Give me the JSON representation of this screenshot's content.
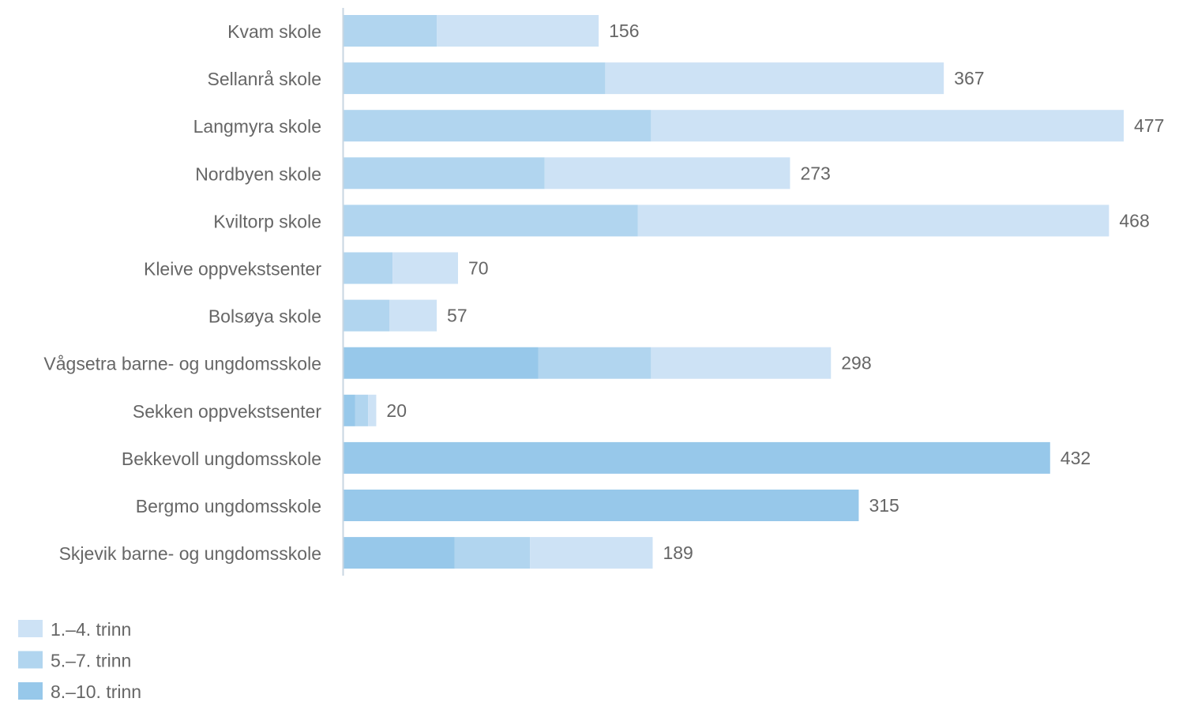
{
  "chart_data": {
    "type": "bar",
    "orientation": "horizontal",
    "stacked": true,
    "categories": [
      "Kvam skole",
      "Sellanrå skole",
      "Langmyra skole",
      "Nordbyen skole",
      "Kviltorp skole",
      "Kleive oppvekstsenter",
      "Bolsøya skole",
      "Vågsetra barne- og ungdomsskole",
      "Sekken oppvekstsenter",
      "Bekkevoll ungdomsskole",
      "Bergmo ungdomsskole",
      "Skjevik barne- og ungdomsskole"
    ],
    "series": [
      {
        "name": "8.–10. trinn",
        "color": "#97c8ea",
        "values": [
          0,
          0,
          0,
          0,
          0,
          0,
          0,
          119,
          7,
          432,
          315,
          68
        ]
      },
      {
        "name": "5.–7. trinn",
        "color": "#b1d5ef",
        "values": [
          57,
          160,
          188,
          123,
          180,
          30,
          28,
          69,
          8,
          0,
          0,
          46
        ]
      },
      {
        "name": "1.–4. trinn",
        "color": "#cde2f5",
        "values": [
          99,
          207,
          289,
          150,
          288,
          40,
          29,
          110,
          5,
          0,
          0,
          75
        ]
      }
    ],
    "totals": [
      156,
      367,
      477,
      273,
      468,
      70,
      57,
      298,
      20,
      432,
      315,
      189
    ],
    "total_labels": [
      "156",
      "367",
      "477",
      "273",
      "468",
      "70",
      "57",
      "298",
      "20",
      "432",
      "315",
      "189"
    ],
    "legend": {
      "placement": "bottom-left",
      "entries": [
        {
          "label": "1.–4. trinn",
          "color": "#cde2f5"
        },
        {
          "label": "5.–7. trinn",
          "color": "#b1d5ef"
        },
        {
          "label": "8.–10. trinn",
          "color": "#97c8ea"
        }
      ]
    },
    "xlim": [
      0,
      477
    ],
    "grid": false,
    "title": "",
    "xlabel": "",
    "ylabel": ""
  }
}
